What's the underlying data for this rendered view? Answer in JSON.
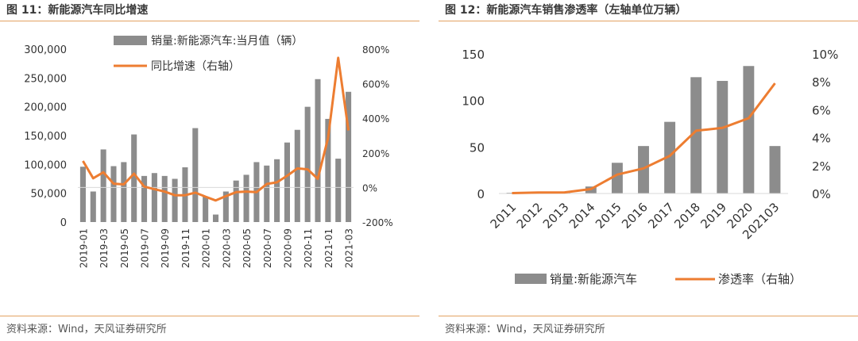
{
  "panels": [
    {
      "title": "图 11：新能源汽车同比增速",
      "source": "资料来源：Wind，天风证券研究所"
    },
    {
      "title": "图 12：新能源汽车销售渗透率（左轴单位万辆）",
      "source": "资料来源：Wind，天风证券研究所"
    }
  ],
  "colors": {
    "bar": "#8c8c8c",
    "line": "#ed7d31",
    "rule": "#e3a262"
  },
  "chart_data": [
    {
      "type": "bar+line",
      "categories": [
        "2019-01",
        "2019-02",
        "2019-03",
        "2019-04",
        "2019-05",
        "2019-06",
        "2019-07",
        "2019-08",
        "2019-09",
        "2019-10",
        "2019-11",
        "2019-12",
        "2020-01",
        "2020-02",
        "2020-03",
        "2020-04",
        "2020-05",
        "2020-06",
        "2020-07",
        "2020-08",
        "2020-09",
        "2020-10",
        "2020-11",
        "2020-12",
        "2021-01",
        "2021-02",
        "2021-03"
      ],
      "x_tick_labels": [
        "2019-01",
        "2019-03",
        "2019-05",
        "2019-07",
        "2019-09",
        "2019-11",
        "2020-01",
        "2020-03",
        "2020-05",
        "2020-07",
        "2020-09",
        "2020-11",
        "2021-01",
        "2021-03"
      ],
      "series": [
        {
          "name": "销量:新能源汽车:当月值（辆）",
          "kind": "bar",
          "axis": "left",
          "values": [
            96000,
            53000,
            126000,
            97000,
            104000,
            152000,
            80000,
            85000,
            80000,
            75000,
            95000,
            163000,
            44000,
            13000,
            53000,
            72000,
            82000,
            104000,
            98000,
            109000,
            138000,
            160000,
            200000,
            248000,
            179000,
            110000,
            226000
          ]
        },
        {
          "name": "同比增速（右轴）",
          "kind": "line",
          "axis": "right",
          "values": [
            153,
            53,
            88,
            22,
            18,
            80,
            5,
            -10,
            -24,
            -45,
            -45,
            -30,
            -53,
            -75,
            -50,
            -27,
            -24,
            -27,
            20,
            30,
            68,
            110,
            105,
            50,
            285,
            750,
            330
          ]
        }
      ],
      "y_left": {
        "ylim": [
          0,
          300000
        ],
        "ticks": [
          "0",
          "50,000",
          "100,000",
          "150,000",
          "200,000",
          "250,000",
          "300,000"
        ]
      },
      "y_right": {
        "ylim": [
          -200,
          800
        ],
        "ticks": [
          "-200%",
          "0%",
          "200%",
          "400%",
          "600%",
          "800%"
        ]
      },
      "legend": "top-left"
    },
    {
      "type": "bar+line",
      "categories": [
        "2011",
        "2012",
        "2013",
        "2014",
        "2015",
        "2016",
        "2017",
        "2018",
        "2019",
        "2020",
        "202103"
      ],
      "series": [
        {
          "name": "销量:新能源汽车",
          "kind": "bar",
          "axis": "left",
          "values": [
            0.8,
            1.3,
            1.8,
            7.5,
            33,
            51,
            77,
            125,
            121,
            137,
            51
          ]
        },
        {
          "name": "渗透率（右轴）",
          "kind": "line",
          "axis": "right",
          "values": [
            0.03,
            0.07,
            0.08,
            0.32,
            1.35,
            1.8,
            2.7,
            4.5,
            4.7,
            5.4,
            7.9
          ]
        }
      ],
      "y_left": {
        "ylim": [
          0,
          150
        ],
        "ticks": [
          "0",
          "50",
          "100",
          "150"
        ]
      },
      "y_right": {
        "ylim": [
          0,
          10
        ],
        "ticks": [
          "0%",
          "2%",
          "4%",
          "6%",
          "8%",
          "10%"
        ]
      },
      "legend": "bottom"
    }
  ]
}
